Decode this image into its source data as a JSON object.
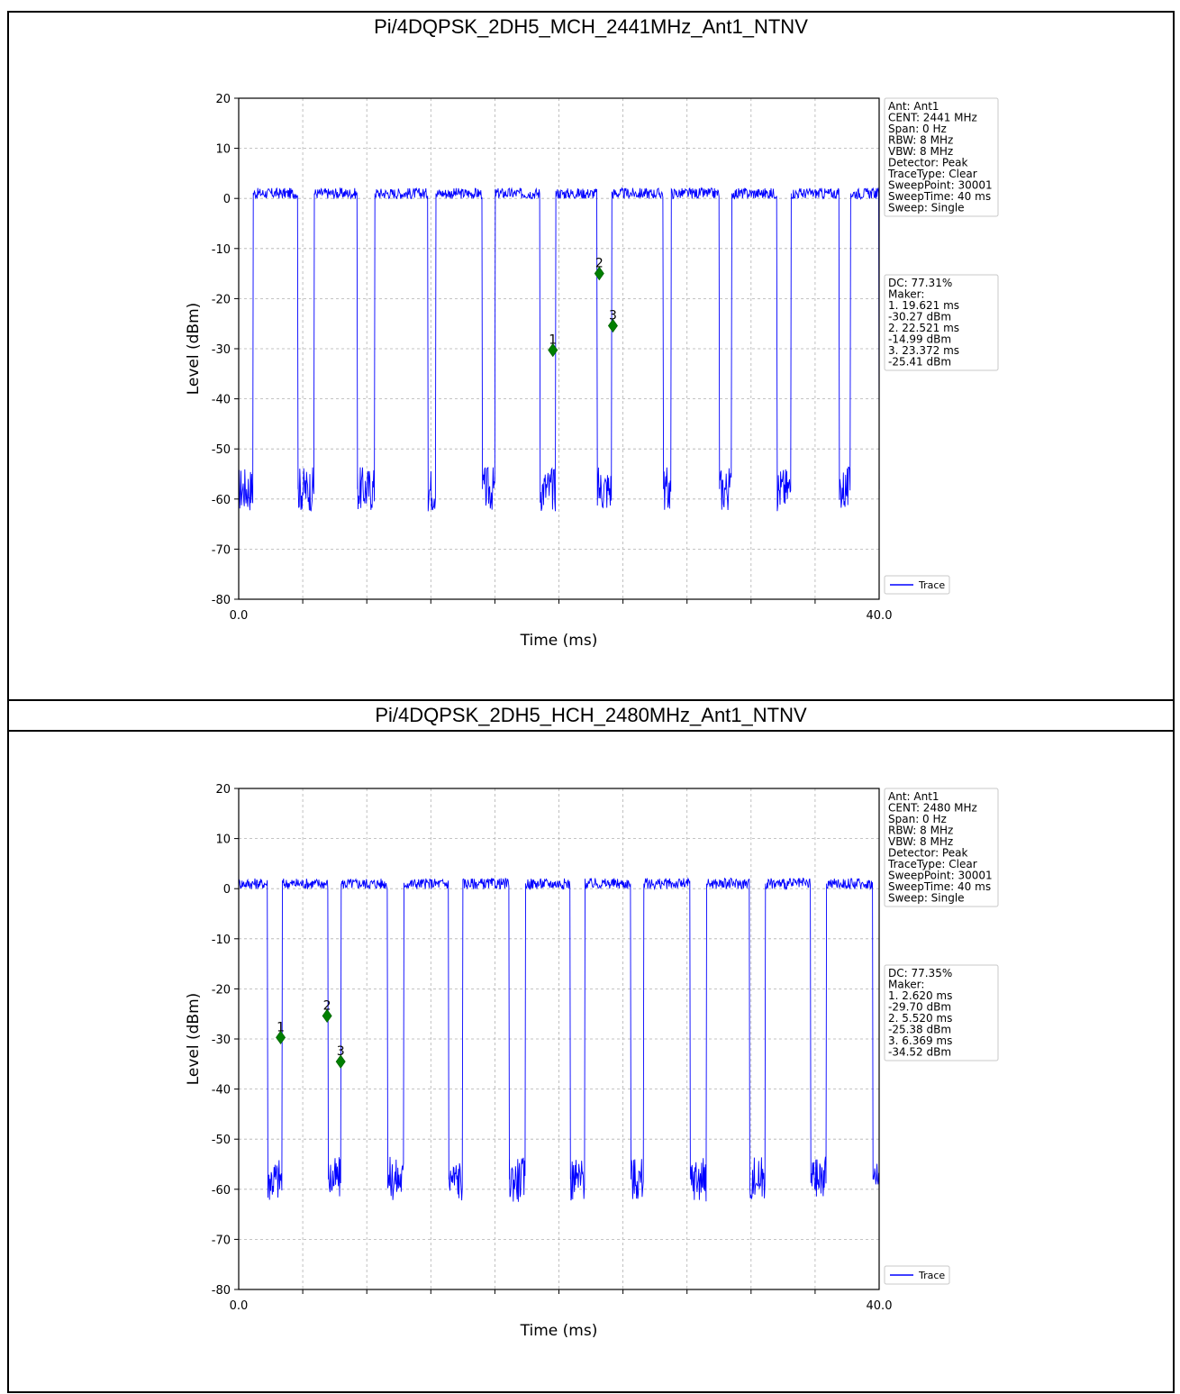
{
  "charts": [
    {
      "title": "Pi/4DQPSK_2DH5_MCH_2441MHz_Ant1_NTNV",
      "info_lines": [
        "Ant: Ant1",
        "CENT: 2441 MHz",
        "Span: 0 Hz",
        "RBW: 8 MHz",
        "VBW: 8 MHz",
        "Detector: Peak",
        "TraceType: Clear",
        "SweepPoint: 30001",
        "SweepTime: 40 ms",
        "Sweep: Single"
      ],
      "marker_lines": [
        "DC: 77.31%",
        "Maker:",
        "1. 19.621 ms",
        "    -30.27 dBm",
        "2. 22.521 ms",
        "    -14.99 dBm",
        "3. 23.372 ms",
        "    -25.41 dBm"
      ],
      "legend_label": "Trace"
    },
    {
      "title": "Pi/4DQPSK_2DH5_HCH_2480MHz_Ant1_NTNV",
      "info_lines": [
        "Ant: Ant1",
        "CENT: 2480 MHz",
        "Span: 0 Hz",
        "RBW: 8 MHz",
        "VBW: 8 MHz",
        "Detector: Peak",
        "TraceType: Clear",
        "SweepPoint: 30001",
        "SweepTime: 40 ms",
        "Sweep: Single"
      ],
      "marker_lines": [
        "DC: 77.35%",
        "Maker:",
        "1. 2.620 ms",
        "    -29.70 dBm",
        "2. 5.520 ms",
        "    -25.38 dBm",
        "3. 6.369 ms",
        "    -34.52 dBm"
      ],
      "legend_label": "Trace"
    }
  ],
  "chart_data": [
    {
      "type": "line",
      "title": "Pi/4DQPSK_2DH5_MCH_2441MHz_Ant1_NTNV",
      "xlabel": "Time (ms)",
      "ylabel": "Level (dBm)",
      "xlim": [
        0.0,
        40.0
      ],
      "ylim": [
        -80,
        20
      ],
      "x_tick_labels": [
        "0.0",
        "40.0"
      ],
      "y_ticks": [
        20,
        10,
        0,
        -10,
        -20,
        -30,
        -40,
        -50,
        -60,
        -70,
        -80
      ],
      "grid": true,
      "legend_position": "bottom-right",
      "series": [
        {
          "name": "Trace",
          "color": "#0000ff",
          "on_intervals_ms": [
            [
              0.9,
              3.7
            ],
            [
              4.7,
              7.4
            ],
            [
              8.5,
              11.8
            ],
            [
              12.3,
              15.2
            ],
            [
              16.0,
              18.8
            ],
            [
              19.8,
              22.4
            ],
            [
              23.3,
              26.5
            ],
            [
              27.0,
              30.0
            ],
            [
              30.8,
              33.6
            ],
            [
              34.5,
              37.5
            ],
            [
              38.2,
              40.0
            ]
          ],
          "on_level_dbm": 1,
          "off_level_dbm": -58
        }
      ],
      "markers": [
        {
          "label": "1",
          "x": 19.621,
          "y": -30.27
        },
        {
          "label": "2",
          "x": 22.521,
          "y": -14.99
        },
        {
          "label": "3",
          "x": 23.372,
          "y": -25.41
        }
      ]
    },
    {
      "type": "line",
      "title": "Pi/4DQPSK_2DH5_HCH_2480MHz_Ant1_NTNV",
      "xlabel": "Time (ms)",
      "ylabel": "Level (dBm)",
      "xlim": [
        0.0,
        40.0
      ],
      "ylim": [
        -80,
        20
      ],
      "x_tick_labels": [
        "0.0",
        "40.0"
      ],
      "y_ticks": [
        20,
        10,
        0,
        -10,
        -20,
        -30,
        -40,
        -50,
        -60,
        -70,
        -80
      ],
      "grid": true,
      "legend_position": "bottom-right",
      "series": [
        {
          "name": "Trace",
          "color": "#0000ff",
          "on_intervals_ms": [
            [
              0.0,
              1.8
            ],
            [
              2.7,
              5.6
            ],
            [
              6.4,
              9.3
            ],
            [
              10.3,
              13.1
            ],
            [
              14.0,
              16.9
            ],
            [
              17.9,
              20.7
            ],
            [
              21.6,
              24.5
            ],
            [
              25.3,
              28.2
            ],
            [
              29.2,
              31.9
            ],
            [
              32.9,
              35.7
            ],
            [
              36.7,
              39.6
            ]
          ],
          "on_level_dbm": 1,
          "off_level_dbm": -58
        }
      ],
      "markers": [
        {
          "label": "1",
          "x": 2.62,
          "y": -29.7
        },
        {
          "label": "2",
          "x": 5.52,
          "y": -25.38
        },
        {
          "label": "3",
          "x": 6.369,
          "y": -34.52
        }
      ]
    }
  ]
}
